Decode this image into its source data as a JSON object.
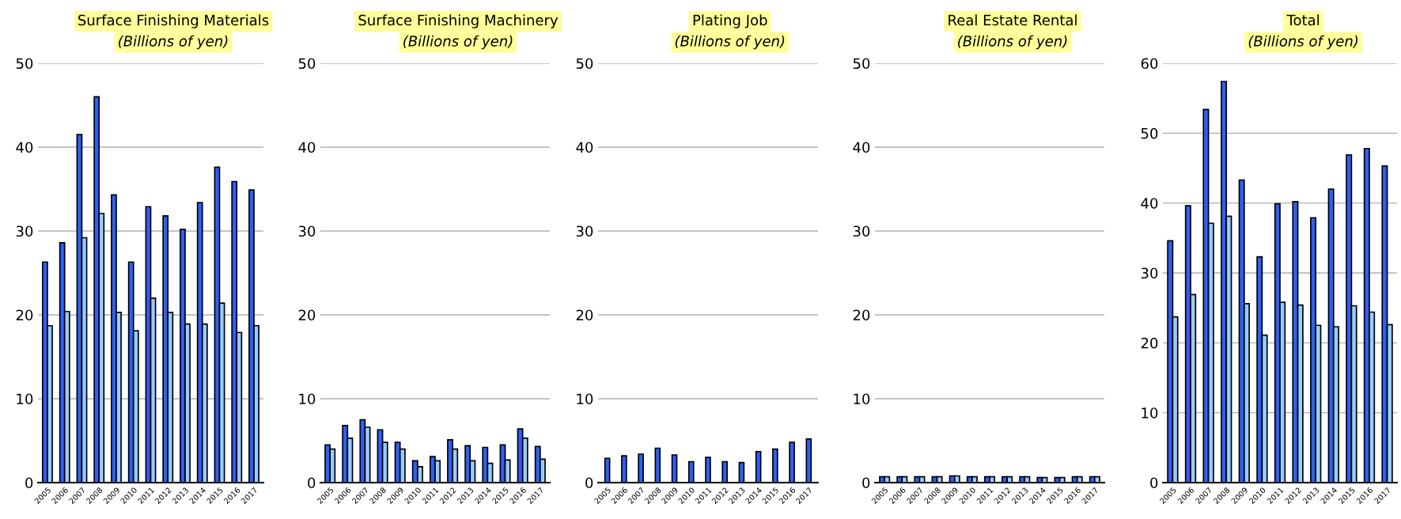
{
  "chart_data": [
    {
      "type": "bar",
      "title": "Surface Finishing Materials",
      "subtitle": "(Billions of yen)",
      "categories": [
        "2005",
        "2006",
        "2007",
        "2008",
        "2009",
        "2010",
        "2011",
        "2012",
        "2013",
        "2014",
        "2015",
        "2016",
        "2017"
      ],
      "ylim": [
        0,
        50
      ],
      "yticks": [
        0,
        10,
        20,
        30,
        40,
        50
      ],
      "grid": "y",
      "series": [
        {
          "color": "#2f5ff5",
          "values": [
            26.3,
            28.6,
            41.5,
            46.0,
            34.3,
            26.3,
            32.9,
            31.8,
            30.2,
            33.4,
            37.6,
            35.9,
            34.9
          ]
        },
        {
          "color": "#99ccff",
          "values": [
            18.7,
            20.4,
            29.2,
            32.1,
            20.3,
            18.1,
            22.0,
            20.3,
            18.9,
            18.9,
            21.4,
            17.9,
            18.7
          ]
        }
      ]
    },
    {
      "type": "bar",
      "title": "Surface Finishing Machinery",
      "subtitle": "(Billions of yen)",
      "categories": [
        "2005",
        "2006",
        "2007",
        "2008",
        "2009",
        "2010",
        "2011",
        "2012",
        "2013",
        "2014",
        "2015",
        "2016",
        "2017"
      ],
      "ylim": [
        0,
        50
      ],
      "yticks": [
        0,
        10,
        20,
        30,
        40,
        50
      ],
      "grid": "y",
      "series": [
        {
          "color": "#2f5ff5",
          "values": [
            4.5,
            6.8,
            7.5,
            6.3,
            4.8,
            2.6,
            3.1,
            5.1,
            4.4,
            4.2,
            4.5,
            6.4,
            4.3
          ]
        },
        {
          "color": "#99ccff",
          "values": [
            4.0,
            5.3,
            6.6,
            4.8,
            4.0,
            1.9,
            2.6,
            4.0,
            2.6,
            2.3,
            2.7,
            5.3,
            2.8
          ]
        }
      ]
    },
    {
      "type": "bar",
      "title": "Plating Job",
      "subtitle": "(Billions of yen)",
      "categories": [
        "2005",
        "2006",
        "2007",
        "2008",
        "2009",
        "2010",
        "2011",
        "2012",
        "2013",
        "2014",
        "2015",
        "2016",
        "2017"
      ],
      "ylim": [
        0,
        50
      ],
      "yticks": [
        0,
        10,
        20,
        30,
        40,
        50
      ],
      "grid": "y",
      "series": [
        {
          "color": "#2f5ff5",
          "values": [
            2.9,
            3.2,
            3.4,
            4.1,
            3.3,
            2.5,
            3.0,
            2.5,
            2.4,
            3.7,
            4.0,
            4.8,
            5.2
          ]
        }
      ]
    },
    {
      "type": "bar",
      "title": "Real Estate Rental",
      "subtitle": "(Billions of yen)",
      "categories": [
        "2005",
        "2006",
        "2007",
        "2008",
        "2009",
        "2010",
        "2011",
        "2012",
        "2013",
        "2014",
        "2015",
        "2016",
        "2017"
      ],
      "ylim": [
        0,
        50
      ],
      "yticks": [
        0,
        10,
        20,
        30,
        40,
        50
      ],
      "grid": "y",
      "series": [
        {
          "color": "#2f5ff5",
          "values": [
            0.7,
            0.7,
            0.7,
            0.7,
            0.8,
            0.7,
            0.7,
            0.7,
            0.7,
            0.6,
            0.6,
            0.7,
            0.7
          ]
        },
        {
          "color": "#99ccff",
          "values": [
            0.7,
            0.7,
            0.7,
            0.7,
            0.8,
            0.7,
            0.7,
            0.7,
            0.7,
            0.6,
            0.6,
            0.7,
            0.7
          ]
        }
      ]
    },
    {
      "type": "bar",
      "title": "Total",
      "subtitle": "(Billions of yen)",
      "categories": [
        "2005",
        "2006",
        "2007",
        "2008",
        "2009",
        "2010",
        "2011",
        "2012",
        "2013",
        "2014",
        "2015",
        "2016",
        "2017"
      ],
      "ylim": [
        0,
        60
      ],
      "yticks": [
        0,
        10,
        20,
        30,
        40,
        50,
        60
      ],
      "grid": "y",
      "series": [
        {
          "color": "#2f5ff5",
          "values": [
            34.6,
            39.6,
            53.4,
            57.4,
            43.3,
            32.3,
            39.9,
            40.2,
            37.9,
            42.0,
            46.9,
            47.8,
            45.3
          ]
        },
        {
          "color": "#99ccff",
          "values": [
            23.7,
            26.9,
            37.1,
            38.1,
            25.6,
            21.1,
            25.8,
            25.4,
            22.5,
            22.3,
            25.3,
            24.4,
            22.6
          ]
        }
      ]
    }
  ]
}
